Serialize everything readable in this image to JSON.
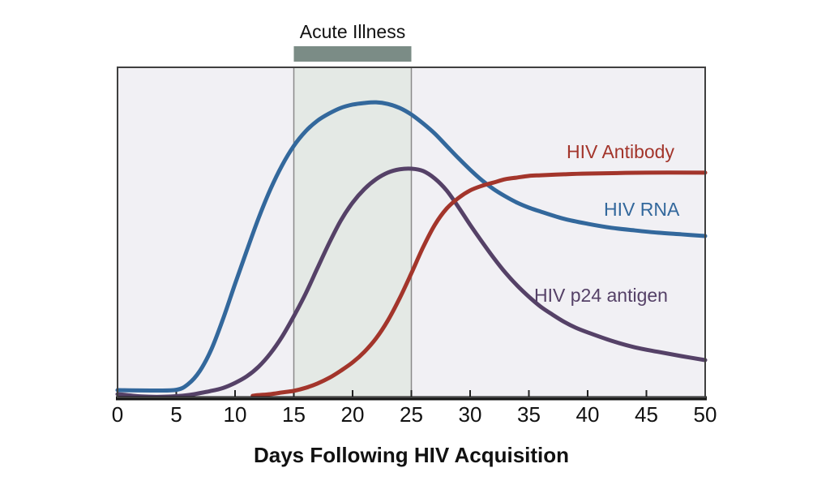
{
  "figure": {
    "background": "#ffffff"
  },
  "chart_data": {
    "type": "line",
    "title": "",
    "xlabel": "Days Following HIV Acquisition",
    "ylabel": "",
    "x_range": [
      0,
      50
    ],
    "y_range": [
      0,
      100
    ],
    "x_ticks": [
      "0",
      "5",
      "10",
      "15",
      "20",
      "25",
      "30",
      "35",
      "40",
      "45",
      "50"
    ],
    "x_tick_values": [
      0,
      5,
      10,
      15,
      20,
      25,
      30,
      35,
      40,
      45,
      50
    ],
    "grid": false,
    "legend_position": "inline-right",
    "plot_bg": "#f1f0f4",
    "border_color": "#3f3f3f",
    "axis_color": "#141414",
    "tick_color": "#222222",
    "acute_band": {
      "label": "Acute Illness",
      "x_start": 15,
      "x_end": 25,
      "fill": "#e4e9e5",
      "edge_color": "#8a8a8a",
      "bar_color": "#7b8c86"
    },
    "series": [
      {
        "name": "HIV RNA",
        "color": "#33689c",
        "points": [
          [
            0,
            2.2
          ],
          [
            3,
            2.1
          ],
          [
            5,
            2.3
          ],
          [
            6,
            4.0
          ],
          [
            7,
            8.0
          ],
          [
            8,
            14.7
          ],
          [
            9,
            24.0
          ],
          [
            10,
            34.4
          ],
          [
            11,
            44.5
          ],
          [
            12,
            54.3
          ],
          [
            13,
            63.0
          ],
          [
            14,
            70.3
          ],
          [
            15,
            76.2
          ],
          [
            16,
            80.6
          ],
          [
            17,
            83.8
          ],
          [
            18,
            86.0
          ],
          [
            19,
            87.7
          ],
          [
            20,
            88.7
          ],
          [
            21,
            89.2
          ],
          [
            22,
            89.4
          ],
          [
            23,
            88.9
          ],
          [
            24,
            87.7
          ],
          [
            25,
            85.7
          ],
          [
            26,
            83.0
          ],
          [
            27,
            79.9
          ],
          [
            28,
            76.2
          ],
          [
            29,
            72.5
          ],
          [
            30,
            69.0
          ],
          [
            31,
            65.8
          ],
          [
            32,
            63.1
          ],
          [
            33,
            60.9
          ],
          [
            34,
            59.0
          ],
          [
            35,
            57.5
          ],
          [
            36,
            56.3
          ],
          [
            38,
            54.1
          ],
          [
            40,
            52.6
          ],
          [
            42,
            51.4
          ],
          [
            44,
            50.6
          ],
          [
            46,
            49.9
          ],
          [
            48,
            49.4
          ],
          [
            50,
            48.9
          ]
        ]
      },
      {
        "name": "HIV p24 antigen",
        "color": "#554167",
        "points": [
          [
            0,
            1.0
          ],
          [
            2,
            0.3
          ],
          [
            4,
            0.2
          ],
          [
            6,
            0.7
          ],
          [
            8,
            2.0
          ],
          [
            9,
            2.9
          ],
          [
            10,
            4.4
          ],
          [
            11,
            6.4
          ],
          [
            12,
            9.3
          ],
          [
            13,
            13.3
          ],
          [
            14,
            18.4
          ],
          [
            15,
            24.6
          ],
          [
            16,
            31.4
          ],
          [
            17,
            39.1
          ],
          [
            18,
            46.7
          ],
          [
            19,
            53.6
          ],
          [
            20,
            59.0
          ],
          [
            21,
            63.1
          ],
          [
            22,
            66.1
          ],
          [
            23,
            68.1
          ],
          [
            24,
            69.1
          ],
          [
            25,
            69.3
          ],
          [
            26,
            68.6
          ],
          [
            27,
            66.3
          ],
          [
            28,
            62.7
          ],
          [
            29,
            57.7
          ],
          [
            30,
            52.3
          ],
          [
            31,
            47.2
          ],
          [
            32,
            42.3
          ],
          [
            33,
            37.8
          ],
          [
            34,
            33.9
          ],
          [
            35,
            30.5
          ],
          [
            36,
            27.5
          ],
          [
            37,
            25.1
          ],
          [
            38,
            22.9
          ],
          [
            39,
            21.1
          ],
          [
            40,
            19.7
          ],
          [
            42,
            17.2
          ],
          [
            44,
            15.2
          ],
          [
            46,
            13.8
          ],
          [
            48,
            12.5
          ],
          [
            50,
            11.3
          ]
        ]
      },
      {
        "name": "HIV Antibody",
        "color": "#a3352b",
        "points": [
          [
            11.5,
            0.5
          ],
          [
            12,
            0.7
          ],
          [
            13,
            1.0
          ],
          [
            14,
            1.5
          ],
          [
            15,
            2.0
          ],
          [
            16,
            2.9
          ],
          [
            17,
            4.2
          ],
          [
            18,
            5.9
          ],
          [
            19,
            8.1
          ],
          [
            20,
            10.6
          ],
          [
            21,
            13.8
          ],
          [
            22,
            17.9
          ],
          [
            23,
            23.3
          ],
          [
            24,
            30.0
          ],
          [
            25,
            37.6
          ],
          [
            26,
            45.5
          ],
          [
            27,
            52.3
          ],
          [
            28,
            57.2
          ],
          [
            29,
            60.4
          ],
          [
            30,
            62.7
          ],
          [
            31,
            64.1
          ],
          [
            32,
            65.1
          ],
          [
            33,
            66.1
          ],
          [
            34,
            66.6
          ],
          [
            35,
            67.1
          ],
          [
            36,
            67.3
          ],
          [
            38,
            67.6
          ],
          [
            40,
            67.8
          ],
          [
            45,
            68.1
          ],
          [
            50,
            68.1
          ]
        ]
      }
    ]
  }
}
